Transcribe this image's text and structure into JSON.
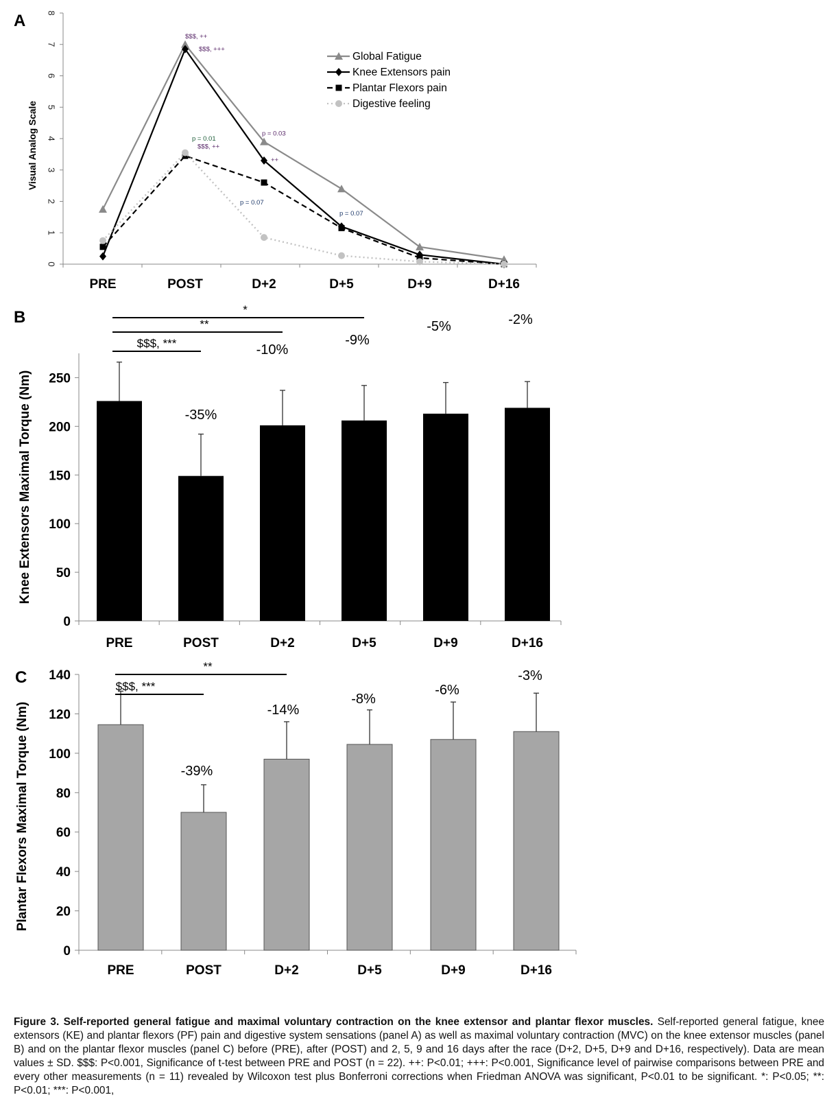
{
  "panels": {
    "a": {
      "letter": "A",
      "chart_data": {
        "type": "line",
        "categories": [
          "PRE",
          "POST",
          "D+2",
          "D+5",
          "D+9",
          "D+16"
        ],
        "ylabel": "Visual Analog Scale",
        "ylim": [
          0,
          8
        ],
        "yticks": [
          "0",
          "1",
          "2",
          "3",
          "4",
          "5",
          "6",
          "7",
          "8"
        ],
        "legend_position": "top-right",
        "series": [
          {
            "name": "Global Fatigue",
            "values": [
              1.75,
              7.0,
              3.9,
              2.4,
              0.55,
              0.15
            ],
            "color": "#8a8a8a",
            "marker": "triangle",
            "dash": "solid"
          },
          {
            "name": "Knee Extensors pain",
            "values": [
              0.25,
              6.85,
              3.3,
              1.2,
              0.3,
              0.0
            ],
            "color": "#000000",
            "marker": "diamond",
            "dash": "solid"
          },
          {
            "name": "Plantar Flexors pain",
            "values": [
              0.55,
              3.45,
              2.6,
              1.15,
              0.2,
              0.0
            ],
            "color": "#000000",
            "marker": "square",
            "dash": "dashed"
          },
          {
            "name": "Digestive feeling",
            "values": [
              0.75,
              3.55,
              0.85,
              0.27,
              0.08,
              0.0
            ],
            "color": "#c2c2c2",
            "marker": "circle",
            "dash": "dotted"
          }
        ],
        "annotations": [
          {
            "text": "$$$, ++",
            "x": "POST",
            "y": 7.1,
            "color": "#5a2a6a"
          },
          {
            "text": "$$$, +++",
            "x": "POST",
            "y": 6.7,
            "color": "#5a2a6a"
          },
          {
            "text": "p = 0.01",
            "x": "POST",
            "y": 3.85,
            "color": "#1f5e3a"
          },
          {
            "text": "$$$, ++",
            "x": "POST",
            "y": 3.6,
            "color": "#5a2a6a"
          },
          {
            "text": "p = 0.03",
            "x": "D+2",
            "y": 4.05,
            "color": "#5a2a6a"
          },
          {
            "text": "++",
            "x": "D+2",
            "y": 3.3,
            "color": "#5a2a6a"
          },
          {
            "text": "p = 0.07",
            "x": "D+2",
            "y": 2.3,
            "color": "#1f3a6a"
          },
          {
            "text": "p = 0.07",
            "x": "D+5",
            "y": 1.42,
            "color": "#1f3a6a"
          }
        ]
      }
    },
    "b": {
      "letter": "B",
      "chart_data": {
        "type": "bar",
        "categories": [
          "PRE",
          "POST",
          "D+2",
          "D+5",
          "D+9",
          "D+16"
        ],
        "values": [
          226,
          149,
          201,
          206,
          213,
          219
        ],
        "errors": [
          40,
          43,
          36,
          36,
          32,
          27
        ],
        "bar_color": "#000000",
        "ylabel": "Knee Extensors Maximal Torque (Nm)",
        "ylim": [
          0,
          275
        ],
        "yticks": [
          "0",
          "50",
          "100",
          "150",
          "200",
          "250"
        ],
        "pct_labels": [
          "",
          "-35%",
          "-10%",
          "-9%",
          "-5%",
          "-2%"
        ],
        "significance": [
          {
            "label": "$$$, ***",
            "from": "PRE",
            "to": "POST"
          },
          {
            "label": "**",
            "from": "PRE",
            "to": "D+2"
          },
          {
            "label": "*",
            "from": "PRE",
            "to": "D+5"
          }
        ]
      }
    },
    "c": {
      "letter": "C",
      "chart_data": {
        "type": "bar",
        "categories": [
          "PRE",
          "POST",
          "D+2",
          "D+5",
          "D+9",
          "D+16"
        ],
        "values": [
          114.5,
          70,
          97,
          104.5,
          107,
          111
        ],
        "errors": [
          17,
          14,
          19,
          17.5,
          19,
          19.5
        ],
        "bar_color": "#a6a6a6",
        "ylabel": "Plantar Flexors Maximal Torque (Nm)",
        "ylim": [
          0,
          140
        ],
        "yticks": [
          "0",
          "20",
          "40",
          "60",
          "80",
          "100",
          "120",
          "140"
        ],
        "pct_labels": [
          "",
          "-39%",
          "-14%",
          "-8%",
          "-6%",
          "-3%"
        ],
        "significance": [
          {
            "label": "$$$, ***",
            "from": "PRE",
            "to": "POST"
          },
          {
            "label": "**",
            "from": "PRE",
            "to": "D+2"
          }
        ]
      }
    }
  },
  "caption": {
    "title": "Figure 3. Self-reported general fatigue and maximal voluntary contraction on the knee extensor and plantar flexor muscles.",
    "body": "Self-reported general fatigue, knee extensors (KE) and plantar flexors (PF) pain and digestive system sensations (panel A) as well as maximal voluntary contraction (MVC) on the knee extensor muscles (panel B) and on the plantar flexor muscles (panel C) before (PRE), after (POST) and 2, 5, 9 and 16 days after the race (D+2, D+5, D+9 and D+16, respectively). Data are mean values ± SD. $$$: P<0.001, Significance of t-test between PRE and POST (n = 22). ++: P<0.01; +++: P<0.001, Significance level of pairwise comparisons between PRE and every other measurements (n = 11) revealed by Wilcoxon test plus Bonferroni corrections when Friedman ANOVA was significant, P<0.01 to be significant. *: P<0.05; **: P<0.01; ***: P<0.001,"
  }
}
